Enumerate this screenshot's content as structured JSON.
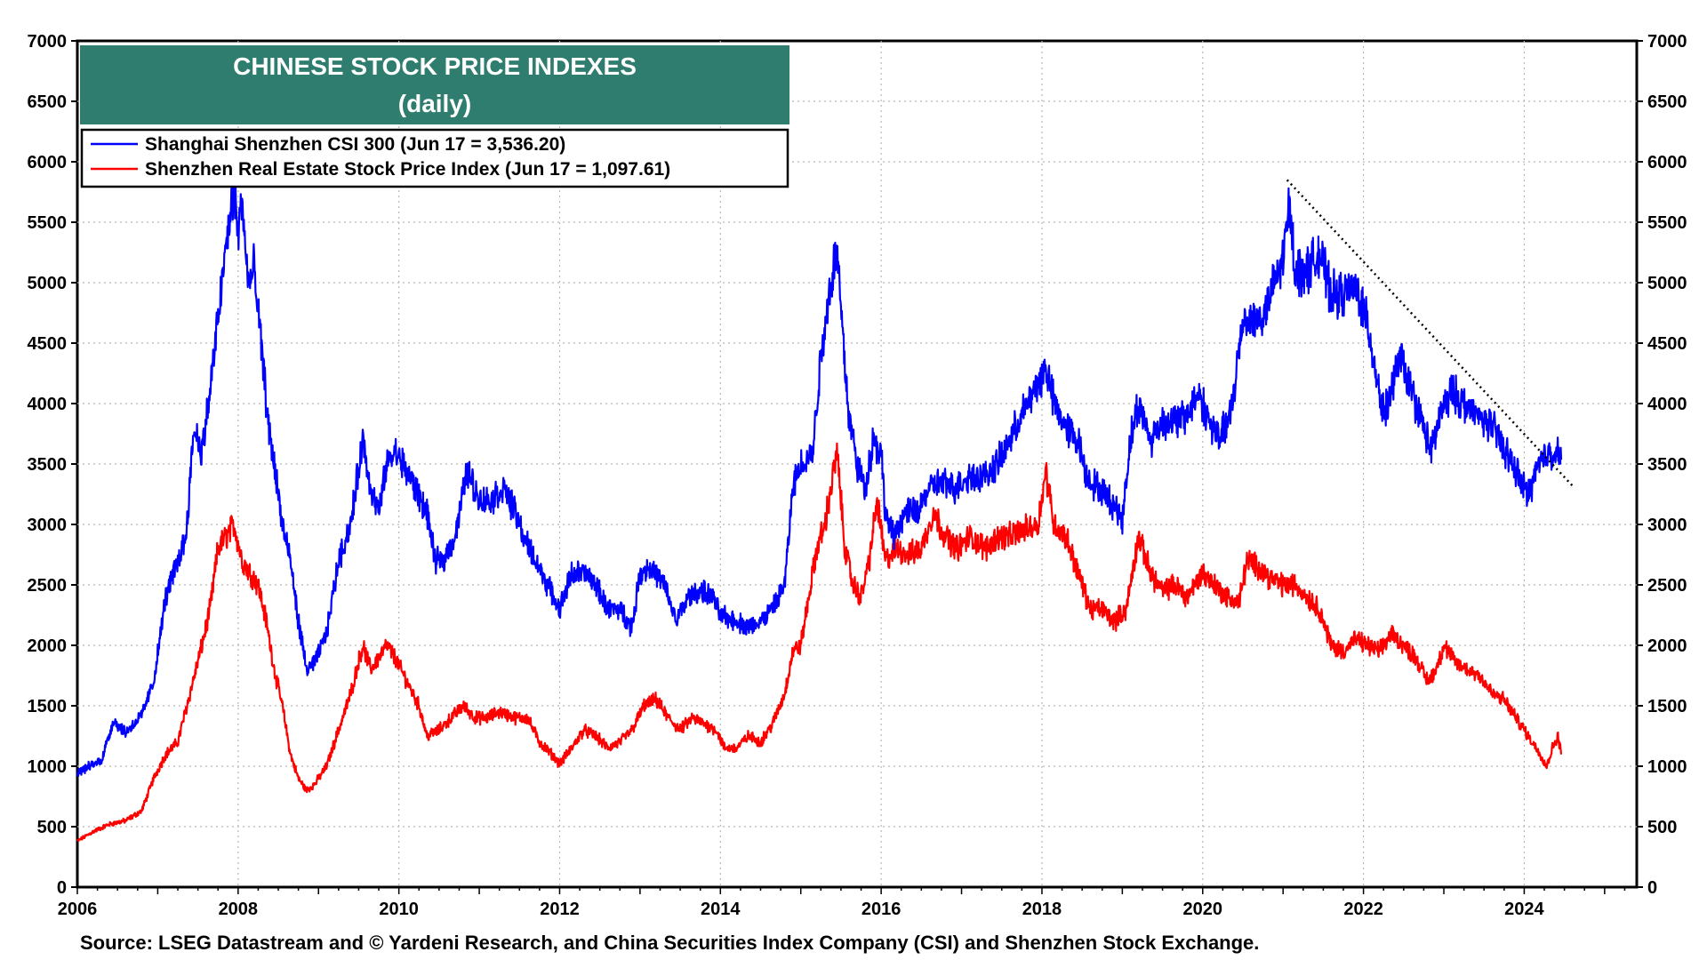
{
  "chart_data": {
    "type": "line",
    "title": "CHINESE STOCK PRICE INDEXES",
    "subtitle": "(daily)",
    "xlabel": "",
    "ylabel": "",
    "xlim": [
      2006,
      2025.4
    ],
    "ylim": [
      0,
      7000
    ],
    "x_ticks": [
      "2006",
      "2008",
      "2010",
      "2012",
      "2014",
      "2016",
      "2018",
      "2020",
      "2022",
      "2024"
    ],
    "y_ticks": [
      "0",
      "500",
      "1000",
      "1500",
      "2000",
      "2500",
      "3000",
      "3500",
      "4000",
      "4500",
      "5000",
      "5500",
      "6000",
      "6500",
      "7000"
    ],
    "grid": true,
    "legend_position": "top-left",
    "series": [
      {
        "name": "Shanghai Shenzhen CSI 300 (Jun 17 = 3,536.20)",
        "color": "#0000ff",
        "points": [
          [
            2006.0,
            950
          ],
          [
            2006.3,
            1050
          ],
          [
            2006.45,
            1380
          ],
          [
            2006.6,
            1280
          ],
          [
            2006.8,
            1420
          ],
          [
            2006.95,
            1700
          ],
          [
            2007.1,
            2400
          ],
          [
            2007.25,
            2700
          ],
          [
            2007.35,
            2900
          ],
          [
            2007.45,
            3800
          ],
          [
            2007.55,
            3600
          ],
          [
            2007.65,
            4100
          ],
          [
            2007.75,
            4700
          ],
          [
            2007.85,
            5300
          ],
          [
            2007.95,
            5800
          ],
          [
            2008.0,
            5400
          ],
          [
            2008.05,
            5700
          ],
          [
            2008.12,
            5000
          ],
          [
            2008.2,
            5100
          ],
          [
            2008.3,
            4400
          ],
          [
            2008.38,
            3800
          ],
          [
            2008.45,
            3500
          ],
          [
            2008.55,
            3000
          ],
          [
            2008.65,
            2700
          ],
          [
            2008.75,
            2200
          ],
          [
            2008.85,
            1800
          ],
          [
            2008.95,
            1850
          ],
          [
            2009.1,
            2100
          ],
          [
            2009.25,
            2700
          ],
          [
            2009.4,
            3000
          ],
          [
            2009.55,
            3700
          ],
          [
            2009.65,
            3300
          ],
          [
            2009.75,
            3100
          ],
          [
            2009.85,
            3500
          ],
          [
            2009.95,
            3600
          ],
          [
            2010.05,
            3500
          ],
          [
            2010.2,
            3300
          ],
          [
            2010.35,
            3100
          ],
          [
            2010.45,
            2700
          ],
          [
            2010.55,
            2700
          ],
          [
            2010.7,
            2900
          ],
          [
            2010.85,
            3450
          ],
          [
            2011.0,
            3200
          ],
          [
            2011.15,
            3200
          ],
          [
            2011.3,
            3300
          ],
          [
            2011.45,
            3100
          ],
          [
            2011.55,
            2900
          ],
          [
            2011.7,
            2700
          ],
          [
            2011.85,
            2500
          ],
          [
            2012.0,
            2300
          ],
          [
            2012.15,
            2600
          ],
          [
            2012.3,
            2600
          ],
          [
            2012.45,
            2500
          ],
          [
            2012.6,
            2300
          ],
          [
            2012.75,
            2300
          ],
          [
            2012.9,
            2150
          ],
          [
            2013.0,
            2600
          ],
          [
            2013.12,
            2650
          ],
          [
            2013.3,
            2500
          ],
          [
            2013.45,
            2200
          ],
          [
            2013.6,
            2400
          ],
          [
            2013.75,
            2450
          ],
          [
            2013.9,
            2400
          ],
          [
            2014.0,
            2250
          ],
          [
            2014.2,
            2200
          ],
          [
            2014.35,
            2150
          ],
          [
            2014.5,
            2200
          ],
          [
            2014.65,
            2300
          ],
          [
            2014.8,
            2500
          ],
          [
            2014.9,
            3300
          ],
          [
            2015.0,
            3500
          ],
          [
            2015.15,
            3600
          ],
          [
            2015.25,
            4400
          ],
          [
            2015.35,
            4900
          ],
          [
            2015.45,
            5300
          ],
          [
            2015.55,
            4300
          ],
          [
            2015.6,
            3900
          ],
          [
            2015.7,
            3500
          ],
          [
            2015.8,
            3300
          ],
          [
            2015.9,
            3700
          ],
          [
            2016.0,
            3600
          ],
          [
            2016.05,
            3100
          ],
          [
            2016.15,
            2900
          ],
          [
            2016.3,
            3100
          ],
          [
            2016.45,
            3100
          ],
          [
            2016.6,
            3300
          ],
          [
            2016.75,
            3350
          ],
          [
            2016.9,
            3300
          ],
          [
            2017.1,
            3400
          ],
          [
            2017.3,
            3400
          ],
          [
            2017.45,
            3500
          ],
          [
            2017.6,
            3700
          ],
          [
            2017.75,
            3900
          ],
          [
            2017.9,
            4100
          ],
          [
            2018.05,
            4300
          ],
          [
            2018.15,
            4000
          ],
          [
            2018.3,
            3800
          ],
          [
            2018.45,
            3700
          ],
          [
            2018.55,
            3400
          ],
          [
            2018.7,
            3300
          ],
          [
            2018.85,
            3200
          ],
          [
            2019.0,
            3050
          ],
          [
            2019.1,
            3700
          ],
          [
            2019.2,
            4000
          ],
          [
            2019.35,
            3700
          ],
          [
            2019.5,
            3850
          ],
          [
            2019.65,
            3850
          ],
          [
            2019.8,
            3900
          ],
          [
            2019.95,
            4100
          ],
          [
            2020.05,
            3900
          ],
          [
            2020.2,
            3700
          ],
          [
            2020.35,
            3900
          ],
          [
            2020.5,
            4700
          ],
          [
            2020.6,
            4700
          ],
          [
            2020.75,
            4700
          ],
          [
            2020.9,
            5000
          ],
          [
            2021.0,
            5200
          ],
          [
            2021.08,
            5650
          ],
          [
            2021.15,
            5100
          ],
          [
            2021.3,
            5100
          ],
          [
            2021.45,
            5250
          ],
          [
            2021.6,
            4900
          ],
          [
            2021.75,
            4900
          ],
          [
            2021.9,
            4950
          ],
          [
            2022.0,
            4800
          ],
          [
            2022.12,
            4400
          ],
          [
            2022.25,
            3900
          ],
          [
            2022.35,
            4100
          ],
          [
            2022.45,
            4400
          ],
          [
            2022.6,
            4100
          ],
          [
            2022.75,
            3800
          ],
          [
            2022.85,
            3600
          ],
          [
            2022.95,
            3900
          ],
          [
            2023.1,
            4100
          ],
          [
            2023.25,
            4000
          ],
          [
            2023.4,
            3900
          ],
          [
            2023.55,
            3850
          ],
          [
            2023.7,
            3700
          ],
          [
            2023.85,
            3500
          ],
          [
            2024.0,
            3300
          ],
          [
            2024.05,
            3250
          ],
          [
            2024.15,
            3450
          ],
          [
            2024.3,
            3600
          ],
          [
            2024.4,
            3600
          ],
          [
            2024.46,
            3536.2
          ]
        ]
      },
      {
        "name": "Shenzhen Real Estate Stock Price Index (Jun 17 = 1,097.61)",
        "color": "#ff0000",
        "points": [
          [
            2006.0,
            380
          ],
          [
            2006.2,
            460
          ],
          [
            2006.4,
            520
          ],
          [
            2006.6,
            550
          ],
          [
            2006.8,
            630
          ],
          [
            2006.95,
            900
          ],
          [
            2007.1,
            1100
          ],
          [
            2007.25,
            1200
          ],
          [
            2007.4,
            1600
          ],
          [
            2007.55,
            2000
          ],
          [
            2007.65,
            2300
          ],
          [
            2007.75,
            2800
          ],
          [
            2007.85,
            2900
          ],
          [
            2007.95,
            3000
          ],
          [
            2008.05,
            2700
          ],
          [
            2008.15,
            2600
          ],
          [
            2008.25,
            2500
          ],
          [
            2008.35,
            2200
          ],
          [
            2008.45,
            1800
          ],
          [
            2008.55,
            1500
          ],
          [
            2008.65,
            1100
          ],
          [
            2008.75,
            900
          ],
          [
            2008.85,
            800
          ],
          [
            2008.95,
            850
          ],
          [
            2009.1,
            1000
          ],
          [
            2009.25,
            1300
          ],
          [
            2009.4,
            1600
          ],
          [
            2009.55,
            2000
          ],
          [
            2009.65,
            1800
          ],
          [
            2009.75,
            1900
          ],
          [
            2009.85,
            2000
          ],
          [
            2009.95,
            1900
          ],
          [
            2010.1,
            1700
          ],
          [
            2010.25,
            1500
          ],
          [
            2010.35,
            1250
          ],
          [
            2010.5,
            1300
          ],
          [
            2010.65,
            1400
          ],
          [
            2010.8,
            1500
          ],
          [
            2010.95,
            1400
          ],
          [
            2011.1,
            1400
          ],
          [
            2011.25,
            1450
          ],
          [
            2011.45,
            1400
          ],
          [
            2011.6,
            1400
          ],
          [
            2011.75,
            1200
          ],
          [
            2011.9,
            1100
          ],
          [
            2012.0,
            1020
          ],
          [
            2012.15,
            1150
          ],
          [
            2012.3,
            1300
          ],
          [
            2012.45,
            1250
          ],
          [
            2012.6,
            1150
          ],
          [
            2012.75,
            1200
          ],
          [
            2012.9,
            1300
          ],
          [
            2013.05,
            1500
          ],
          [
            2013.2,
            1550
          ],
          [
            2013.35,
            1400
          ],
          [
            2013.5,
            1300
          ],
          [
            2013.65,
            1400
          ],
          [
            2013.8,
            1350
          ],
          [
            2013.95,
            1300
          ],
          [
            2014.05,
            1150
          ],
          [
            2014.2,
            1150
          ],
          [
            2014.35,
            1250
          ],
          [
            2014.5,
            1200
          ],
          [
            2014.65,
            1350
          ],
          [
            2014.8,
            1600
          ],
          [
            2014.9,
            1950
          ],
          [
            2015.0,
            2000
          ],
          [
            2015.1,
            2400
          ],
          [
            2015.2,
            2800
          ],
          [
            2015.3,
            3000
          ],
          [
            2015.45,
            3600
          ],
          [
            2015.55,
            2800
          ],
          [
            2015.65,
            2500
          ],
          [
            2015.75,
            2400
          ],
          [
            2015.85,
            2700
          ],
          [
            2015.95,
            3200
          ],
          [
            2016.05,
            2700
          ],
          [
            2016.2,
            2800
          ],
          [
            2016.35,
            2750
          ],
          [
            2016.5,
            2800
          ],
          [
            2016.65,
            3100
          ],
          [
            2016.8,
            2900
          ],
          [
            2016.95,
            2800
          ],
          [
            2017.1,
            2900
          ],
          [
            2017.3,
            2800
          ],
          [
            2017.45,
            2900
          ],
          [
            2017.6,
            2900
          ],
          [
            2017.75,
            2950
          ],
          [
            2017.95,
            3000
          ],
          [
            2018.05,
            3450
          ],
          [
            2018.15,
            3000
          ],
          [
            2018.3,
            2900
          ],
          [
            2018.45,
            2600
          ],
          [
            2018.6,
            2300
          ],
          [
            2018.75,
            2300
          ],
          [
            2018.9,
            2200
          ],
          [
            2019.05,
            2300
          ],
          [
            2019.2,
            2900
          ],
          [
            2019.35,
            2600
          ],
          [
            2019.5,
            2450
          ],
          [
            2019.65,
            2500
          ],
          [
            2019.8,
            2400
          ],
          [
            2020.0,
            2600
          ],
          [
            2020.15,
            2500
          ],
          [
            2020.3,
            2400
          ],
          [
            2020.45,
            2350
          ],
          [
            2020.55,
            2700
          ],
          [
            2020.7,
            2650
          ],
          [
            2020.85,
            2550
          ],
          [
            2021.0,
            2500
          ],
          [
            2021.15,
            2500
          ],
          [
            2021.3,
            2400
          ],
          [
            2021.45,
            2300
          ],
          [
            2021.6,
            2000
          ],
          [
            2021.75,
            1950
          ],
          [
            2021.9,
            2050
          ],
          [
            2022.05,
            2000
          ],
          [
            2022.2,
            1950
          ],
          [
            2022.35,
            2100
          ],
          [
            2022.5,
            2000
          ],
          [
            2022.65,
            1900
          ],
          [
            2022.8,
            1700
          ],
          [
            2022.9,
            1800
          ],
          [
            2023.0,
            2000
          ],
          [
            2023.15,
            1850
          ],
          [
            2023.3,
            1800
          ],
          [
            2023.45,
            1750
          ],
          [
            2023.6,
            1600
          ],
          [
            2023.75,
            1550
          ],
          [
            2023.9,
            1400
          ],
          [
            2024.05,
            1250
          ],
          [
            2024.2,
            1100
          ],
          [
            2024.28,
            1000
          ],
          [
            2024.35,
            1150
          ],
          [
            2024.42,
            1250
          ],
          [
            2024.46,
            1097.61
          ]
        ]
      }
    ],
    "annotations": [
      {
        "type": "trendline",
        "style": "dotted",
        "color": "#000000",
        "from": [
          2021.05,
          5850
        ],
        "to": [
          2024.6,
          3320
        ]
      }
    ]
  },
  "legend": {
    "entries": [
      {
        "label": "Shanghai Shenzhen CSI 300 (Jun 17 = 3,536.20)",
        "color": "#0000ff"
      },
      {
        "label": "Shenzhen Real Estate Stock Price Index (Jun 17 = 1,097.61)",
        "color": "#ff0000"
      }
    ]
  },
  "title_box_color": "#2e7d6f",
  "source": "Source: LSEG Datastream and © Yardeni Research, and China Securities Index Company (CSI) and Shenzhen Stock Exchange."
}
